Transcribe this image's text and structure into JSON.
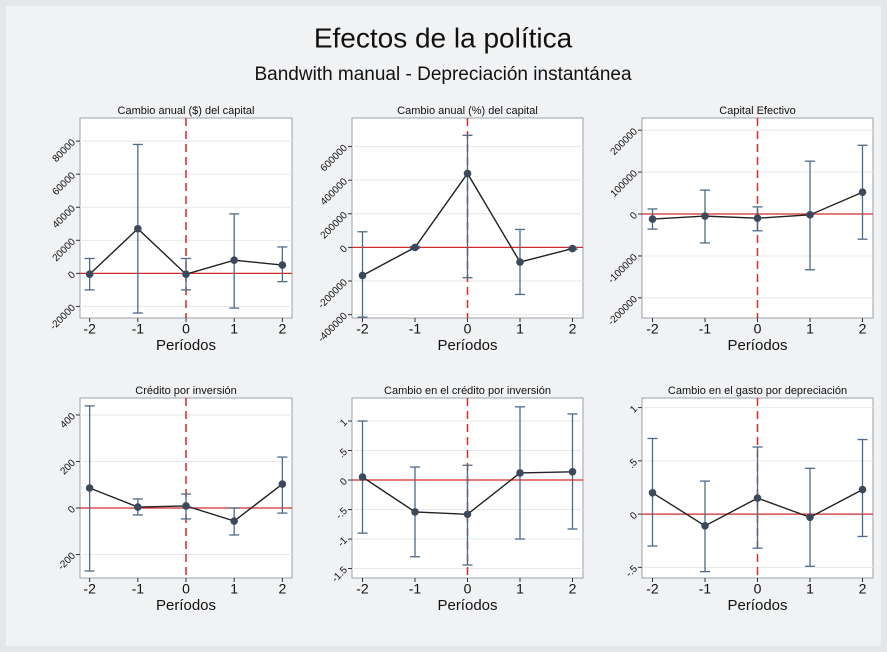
{
  "title": "Efectos de la política",
  "subtitle": "Bandwith manual - Depreciación instantánea",
  "chart_data": [
    {
      "type": "errorbar",
      "title": "Cambio anual ($) del capital",
      "xlabel": "Períodos",
      "x": [
        -2,
        -1,
        0,
        1,
        2
      ],
      "values": [
        -500,
        27000,
        -500,
        8000,
        5000
      ],
      "ci_low": [
        -10000,
        -24000,
        -10000,
        -21000,
        -5000
      ],
      "ci_high": [
        9000,
        78000,
        9000,
        36000,
        16000
      ],
      "xlim": [
        -2.2,
        2.2
      ],
      "xticks": [
        -2,
        -1,
        0,
        1,
        2
      ],
      "ylim": [
        -27000,
        94000
      ],
      "yticks": [
        -20000,
        0,
        20000,
        40000,
        60000,
        80000
      ],
      "hline": 0,
      "vline": 0,
      "color": "#3a4a5c",
      "ci_color": "#4d6b87",
      "ref_color": "#d42a2a"
    },
    {
      "type": "errorbar",
      "title": "Cambio anual (%) del capital",
      "xlabel": "Períodos",
      "x": [
        -2,
        -1,
        0,
        1,
        2
      ],
      "values": [
        -167000,
        0,
        440000,
        -87000,
        -7000
      ],
      "ci_low": [
        -415000,
        -5000,
        -180000,
        -280000,
        -12000
      ],
      "ci_high": [
        93000,
        5000,
        667000,
        107000,
        -2000
      ],
      "xlim": [
        -2.2,
        2.2
      ],
      "xticks": [
        -2,
        -1,
        0,
        1,
        2
      ],
      "ylim": [
        -420000,
        770000
      ],
      "yticks": [
        -400000,
        -200000,
        0,
        200000,
        400000,
        600000
      ],
      "hline": 0,
      "vline": 0,
      "color": "#3a4a5c",
      "ci_color": "#4d6b87",
      "ref_color": "#d42a2a"
    },
    {
      "type": "errorbar",
      "title": "Capital Efectivo",
      "xlabel": "Períodos",
      "x": [
        -2,
        -1,
        0,
        1,
        2
      ],
      "values": [
        -12000,
        -5000,
        -10000,
        -2000,
        52000
      ],
      "ci_low": [
        -36000,
        -69000,
        -40000,
        -133000,
        -60000
      ],
      "ci_high": [
        12000,
        57000,
        17000,
        126000,
        164000
      ],
      "xlim": [
        -2.2,
        2.2
      ],
      "xticks": [
        -2,
        -1,
        0,
        1,
        2
      ],
      "ylim": [
        -248000,
        229000
      ],
      "yticks": [
        -200000,
        -100000,
        0,
        100000,
        200000
      ],
      "hline": 0,
      "vline": 0,
      "color": "#3a4a5c",
      "ci_color": "#4d6b87",
      "ref_color": "#d42a2a"
    },
    {
      "type": "errorbar",
      "title": "Crédito por inversión",
      "xlabel": "Períodos",
      "x": [
        -2,
        -1,
        0,
        1,
        2
      ],
      "values": [
        86,
        4,
        9,
        -56,
        103
      ],
      "ci_low": [
        -271,
        -30,
        -47,
        -116,
        -22
      ],
      "ci_high": [
        439,
        39,
        60,
        0,
        219
      ],
      "xlim": [
        -2.2,
        2.2
      ],
      "xticks": [
        -2,
        -1,
        0,
        1,
        2
      ],
      "ylim": [
        -301,
        473
      ],
      "yticks": [
        -200,
        0,
        200,
        400
      ],
      "hline": 0,
      "vline": 0,
      "color": "#3a4a5c",
      "ci_color": "#4d6b87",
      "ref_color": "#d42a2a"
    },
    {
      "type": "errorbar",
      "title": "Cambio en el crédito por inversión",
      "xlabel": "Períodos",
      "x": [
        -2,
        -1,
        0,
        1,
        2
      ],
      "values": [
        0.05,
        -0.54,
        -0.58,
        0.12,
        0.14
      ],
      "ci_low": [
        -0.9,
        -1.3,
        -1.44,
        -1.0,
        -0.83
      ],
      "ci_high": [
        1.0,
        0.22,
        0.25,
        1.24,
        1.12
      ],
      "xlim": [
        -2.2,
        2.2
      ],
      "xticks": [
        -2,
        -1,
        0,
        1,
        2
      ],
      "ylim": [
        -1.66,
        1.39
      ],
      "yticks": [
        -1.5,
        -1,
        {
          "value": -0.5,
          "label": "-.5"
        },
        0,
        {
          "value": 0.5,
          "label": ".5"
        },
        1
      ],
      "hline": 0,
      "vline": 0,
      "color": "#3a4a5c",
      "ci_color": "#4d6b87",
      "ref_color": "#d42a2a"
    },
    {
      "type": "errorbar",
      "title": "Cambio en el gasto por depreciación",
      "xlabel": "Períodos",
      "x": [
        -2,
        -1,
        0,
        1,
        2
      ],
      "values": [
        0.2,
        -0.11,
        0.15,
        -0.03,
        0.23
      ],
      "ci_low": [
        -0.3,
        -0.54,
        -0.32,
        -0.49,
        -0.21
      ],
      "ci_high": [
        0.71,
        0.31,
        0.63,
        0.43,
        0.7
      ],
      "xlim": [
        -2.2,
        2.2
      ],
      "xticks": [
        -2,
        -1,
        0,
        1,
        2
      ],
      "ylim": [
        -0.6,
        1.09
      ],
      "yticks": [
        {
          "value": -0.5,
          "label": "-.5"
        },
        0,
        {
          "value": 0.5,
          "label": ".5"
        },
        1
      ],
      "hline": 0,
      "vline": 0,
      "color": "#3a4a5c",
      "ci_color": "#4d6b87",
      "ref_color": "#d42a2a"
    }
  ]
}
